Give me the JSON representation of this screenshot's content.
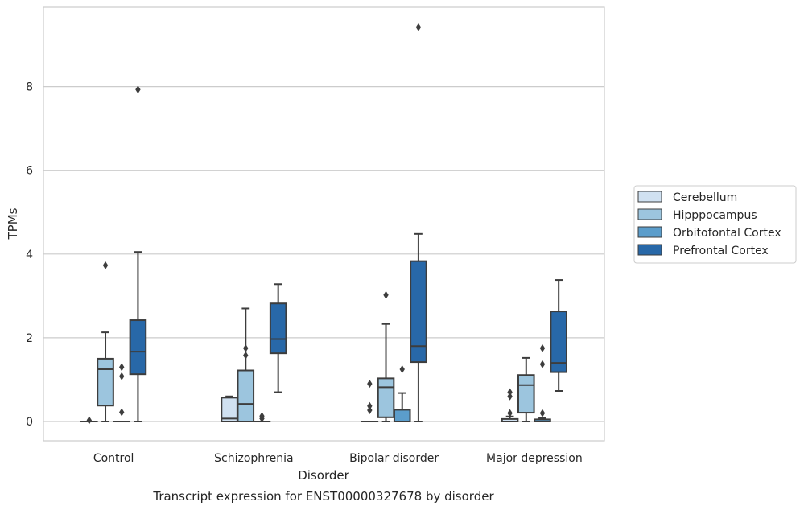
{
  "chart_data": {
    "type": "box",
    "title": "Transcript expression for ENST00000327678 by disorder",
    "xlabel": "Disorder",
    "ylabel": "TPMs",
    "ylim": [
      -0.45,
      9.9
    ],
    "yticks": [
      0,
      2,
      4,
      6,
      8
    ],
    "grid": "horizontal",
    "legend_position": "right",
    "categories": [
      "Control",
      "Schizophrenia",
      "Bipolar disorder",
      "Major depression"
    ],
    "series": [
      {
        "name": "Cerebellum",
        "color": "#d0e1f1",
        "boxes": [
          {
            "whislo": 0.0,
            "q1": 0.0,
            "med": 0.0,
            "q3": 0.0,
            "whishi": 0.0,
            "fliers": [
              0.03
            ]
          },
          {
            "whislo": 0.0,
            "q1": 0.0,
            "med": 0.07,
            "q3": 0.57,
            "whishi": 0.6,
            "fliers": []
          },
          {
            "whislo": 0.0,
            "q1": 0.0,
            "med": 0.0,
            "q3": 0.0,
            "whishi": 0.0,
            "fliers": [
              0.27,
              0.37,
              0.9
            ]
          },
          {
            "whislo": 0.0,
            "q1": 0.0,
            "med": 0.0,
            "q3": 0.06,
            "whishi": 0.12,
            "fliers": [
              0.2,
              0.6,
              0.7
            ]
          }
        ]
      },
      {
        "name": "Hipppocampus",
        "color": "#9cc5de",
        "boxes": [
          {
            "whislo": 0.0,
            "q1": 0.38,
            "med": 1.25,
            "q3": 1.5,
            "whishi": 2.13,
            "fliers": [
              3.73
            ]
          },
          {
            "whislo": 0.0,
            "q1": 0.0,
            "med": 0.42,
            "q3": 1.22,
            "whishi": 2.7,
            "fliers": [
              1.58,
              1.75
            ]
          },
          {
            "whislo": 0.0,
            "q1": 0.1,
            "med": 0.82,
            "q3": 1.03,
            "whishi": 2.33,
            "fliers": [
              3.02
            ]
          },
          {
            "whislo": 0.0,
            "q1": 0.21,
            "med": 0.87,
            "q3": 1.11,
            "whishi": 1.52,
            "fliers": []
          }
        ]
      },
      {
        "name": "Orbitofontal Cortex",
        "color": "#5b9dcb",
        "boxes": [
          {
            "whislo": 0.0,
            "q1": 0.0,
            "med": 0.0,
            "q3": 0.0,
            "whishi": 0.0,
            "fliers": [
              0.22,
              1.08,
              1.3
            ]
          },
          {
            "whislo": 0.0,
            "q1": 0.0,
            "med": 0.0,
            "q3": 0.0,
            "whishi": 0.0,
            "fliers": [
              0.07,
              0.13
            ]
          },
          {
            "whislo": 0.0,
            "q1": 0.0,
            "med": 0.0,
            "q3": 0.28,
            "whishi": 0.68,
            "fliers": [
              1.25
            ]
          },
          {
            "whislo": 0.0,
            "q1": 0.0,
            "med": 0.0,
            "q3": 0.05,
            "whishi": 0.08,
            "fliers": [
              0.2,
              1.37,
              1.75
            ]
          }
        ]
      },
      {
        "name": "Prefrontal Cortex",
        "color": "#2868a8",
        "boxes": [
          {
            "whislo": 0.0,
            "q1": 1.13,
            "med": 1.67,
            "q3": 2.42,
            "whishi": 4.05,
            "fliers": [
              7.93
            ]
          },
          {
            "whislo": 0.7,
            "q1": 1.63,
            "med": 1.97,
            "q3": 2.82,
            "whishi": 3.28,
            "fliers": []
          },
          {
            "whislo": 0.0,
            "q1": 1.42,
            "med": 1.8,
            "q3": 3.83,
            "whishi": 4.48,
            "fliers": [
              9.42
            ]
          },
          {
            "whislo": 0.73,
            "q1": 1.18,
            "med": 1.4,
            "q3": 2.63,
            "whishi": 3.38,
            "fliers": []
          }
        ]
      }
    ]
  }
}
